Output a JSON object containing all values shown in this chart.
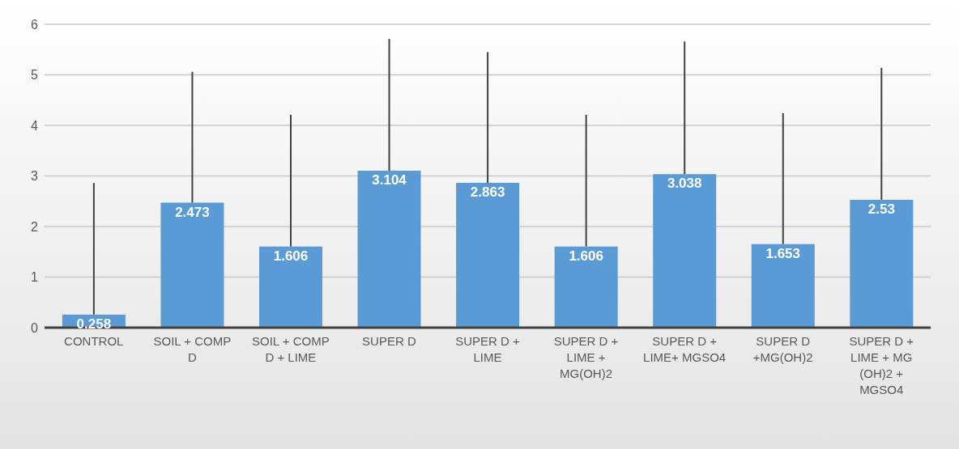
{
  "chart_data": {
    "type": "bar",
    "categories": [
      "CONTROL",
      "SOIL + COMP D",
      "SOIL + COMP D + LIME",
      "SUPER D",
      "SUPER D + LIME",
      "SUPER D + LIME + MG(OH)2",
      "SUPER D + LIME+ MGSO4",
      "SUPER D +MG(OH)2",
      "SUPER D + LIME + MG (OH)2 + MGSO4"
    ],
    "values": [
      0.258,
      2.473,
      1.606,
      3.104,
      2.863,
      1.606,
      3.038,
      1.653,
      2.53
    ],
    "errors": [
      [
        0.258,
        2.86
      ],
      [
        2.473,
        5.06
      ],
      [
        1.606,
        4.21
      ],
      [
        3.104,
        5.71
      ],
      [
        2.863,
        5.45
      ],
      [
        1.606,
        4.21
      ],
      [
        3.038,
        5.66
      ],
      [
        1.653,
        4.24
      ],
      [
        2.53,
        5.14
      ]
    ],
    "color": "#5b9bd5",
    "data_labels": true,
    "ylim": [
      0,
      6
    ],
    "yticks": [
      0,
      1,
      2,
      3,
      4,
      5,
      6
    ],
    "grid": "y",
    "legend": false
  }
}
